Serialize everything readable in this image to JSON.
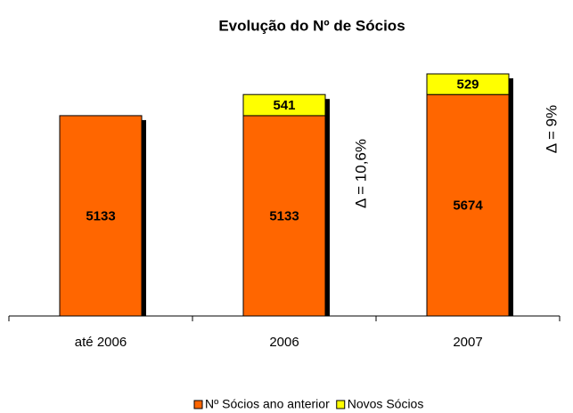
{
  "chart_data": {
    "type": "stacked_bar",
    "title": "Evolução do Nº de Sócios",
    "categories": [
      "até 2006",
      "2006",
      "2007"
    ],
    "series": [
      {
        "name": "Nº Sócios ano anterior",
        "color": "#ff6600",
        "values": [
          5133,
          5133,
          5674
        ]
      },
      {
        "name": "Novos Sócios",
        "color": "#ffff00",
        "values": [
          null,
          541,
          529
        ]
      }
    ],
    "annotations": [
      "Δ = 10,6%",
      "Δ = 9%"
    ],
    "legend": "bottom"
  }
}
